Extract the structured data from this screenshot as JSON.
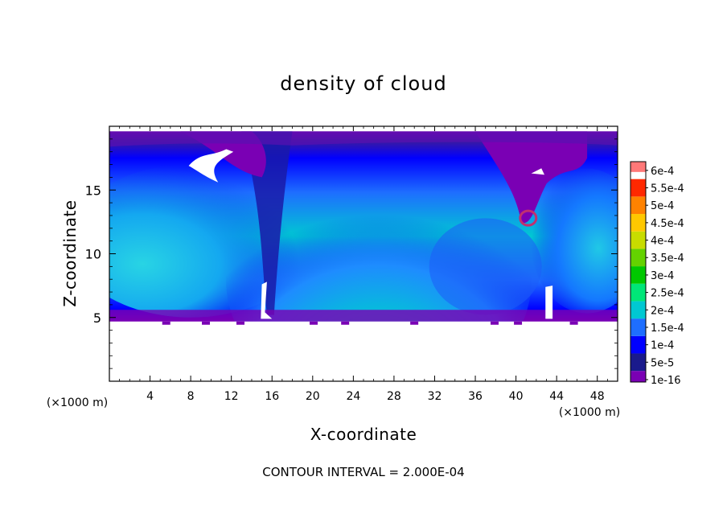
{
  "chart_data": {
    "type": "heatmap",
    "title": "density of cloud",
    "xlabel": "X-coordinate",
    "ylabel": "Z-coordinate",
    "x_unit": "(×1000 m)",
    "x_unit_right": "(×1000 m)",
    "xlim": [
      0,
      50
    ],
    "ylim": [
      0,
      20
    ],
    "x_ticks": [
      4,
      8,
      12,
      16,
      20,
      24,
      28,
      32,
      36,
      40,
      44,
      48
    ],
    "y_ticks": [
      5,
      10,
      15
    ],
    "footer": "CONTOUR INTERVAL = 2.000E-04",
    "colorbar": {
      "labels": [
        "1e-16",
        "5e-5",
        "1e-4",
        "1.5e-4",
        "2e-4",
        "2.5e-4",
        "3e-4",
        "3.5e-4",
        "4e-4",
        "4.5e-4",
        "5e-4",
        "5.5e-4",
        "6e-4"
      ],
      "colors": [
        "#7a00b4",
        "#1a1a8c",
        "#0000ff",
        "#1e6eff",
        "#00c8d2",
        "#00e678",
        "#00c800",
        "#64d200",
        "#c8dc00",
        "#ffc800",
        "#ff8200",
        "#ff2800",
        "#ff7878"
      ]
    },
    "cloud_base_z": 5,
    "cloud_top_z": 19.6
  }
}
